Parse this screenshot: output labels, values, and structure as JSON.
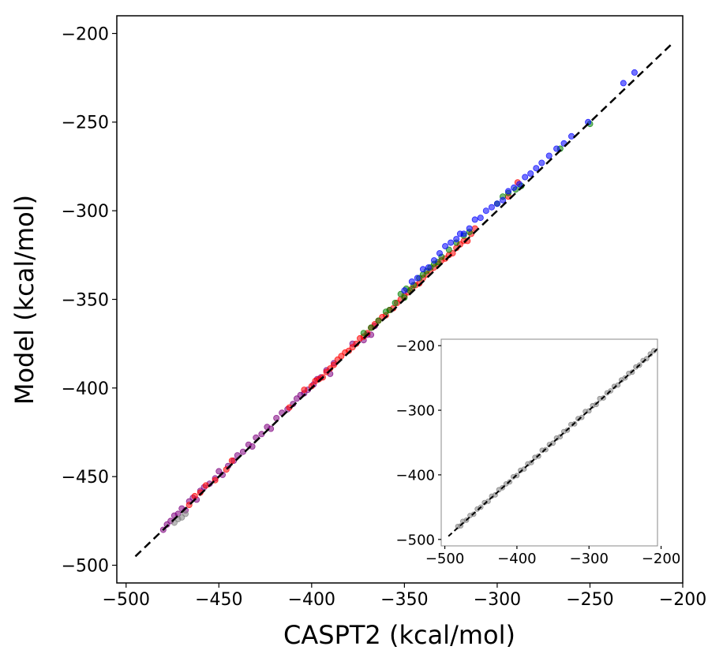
{
  "chart_data": [
    {
      "type": "scatter",
      "title": "",
      "xlabel": "CASPT2 (kcal/mol)",
      "ylabel": "Model (kcal/mol)",
      "xlim": [
        -505,
        -200
      ],
      "ylim": [
        -510,
        -190
      ],
      "xticks": [
        -500,
        -450,
        -400,
        -350,
        -300,
        -250,
        -200
      ],
      "yticks": [
        -500,
        -450,
        -400,
        -350,
        -300,
        -250,
        -200
      ],
      "xtick_labels": [
        "−500",
        "−450",
        "−400",
        "−350",
        "−300",
        "−250",
        "−200"
      ],
      "ytick_labels": [
        "−500",
        "−450",
        "−400",
        "−350",
        "−300",
        "−250",
        "−200"
      ],
      "grid": false,
      "reference_line": {
        "x": [
          -495,
          -205
        ],
        "y": [
          -495,
          -205
        ],
        "style": "dashed",
        "color": "#000000"
      },
      "series": [
        {
          "color": "#800080",
          "points": [
            [
              -480,
              -480
            ],
            [
              -478,
              -477
            ],
            [
              -476,
              -475
            ],
            [
              -474,
              -472
            ],
            [
              -472,
              -471
            ],
            [
              -470,
              -468
            ],
            [
              -468,
              -469
            ],
            [
              -466,
              -464
            ],
            [
              -464,
              -462
            ],
            [
              -462,
              -463
            ],
            [
              -460,
              -458
            ],
            [
              -458,
              -456
            ],
            [
              -455,
              -454
            ],
            [
              -452,
              -451
            ],
            [
              -450,
              -447
            ],
            [
              -448,
              -449
            ],
            [
              -445,
              -444
            ],
            [
              -442,
              -441
            ],
            [
              -440,
              -438
            ],
            [
              -437,
              -436
            ],
            [
              -434,
              -432
            ],
            [
              -432,
              -433
            ],
            [
              -430,
              -428
            ],
            [
              -427,
              -426
            ],
            [
              -424,
              -422
            ],
            [
              -422,
              -423
            ],
            [
              -419,
              -417
            ],
            [
              -416,
              -414
            ],
            [
              -413,
              -412
            ],
            [
              -410,
              -409
            ],
            [
              -408,
              -406
            ],
            [
              -406,
              -404
            ],
            [
              -404,
              -403
            ],
            [
              -402,
              -401
            ],
            [
              -399,
              -398
            ],
            [
              -397,
              -395
            ],
            [
              -395,
              -394
            ],
            [
              -392,
              -390
            ],
            [
              -390,
              -392
            ],
            [
              -388,
              -386
            ],
            [
              -378,
              -375
            ],
            [
              -372,
              -373
            ],
            [
              -370,
              -370
            ],
            [
              -368,
              -370
            ],
            [
              -366,
              -365
            ]
          ]
        },
        {
          "color": "#ff0000",
          "points": [
            [
              -466,
              -466
            ],
            [
              -463,
              -461
            ],
            [
              -460,
              -459
            ],
            [
              -457,
              -455
            ],
            [
              -452,
              -452
            ],
            [
              -446,
              -446
            ],
            [
              -443,
              -441
            ],
            [
              -412,
              -411
            ],
            [
              -404,
              -401
            ],
            [
              -400,
              -399
            ],
            [
              -398,
              -396
            ],
            [
              -396,
              -395
            ],
            [
              -394,
              -394
            ],
            [
              -392,
              -391
            ],
            [
              -390,
              -389
            ],
            [
              -388,
              -387
            ],
            [
              -386,
              -384
            ],
            [
              -384,
              -382
            ],
            [
              -382,
              -380
            ],
            [
              -380,
              -379
            ],
            [
              -378,
              -377
            ],
            [
              -376,
              -375
            ],
            [
              -374,
              -372
            ],
            [
              -372,
              -371
            ],
            [
              -370,
              -369
            ],
            [
              -368,
              -366
            ],
            [
              -366,
              -364
            ],
            [
              -364,
              -362
            ],
            [
              -362,
              -360
            ],
            [
              -360,
              -359
            ],
            [
              -358,
              -356
            ],
            [
              -356,
              -355
            ],
            [
              -354,
              -352
            ],
            [
              -352,
              -350
            ],
            [
              -350,
              -348
            ],
            [
              -348,
              -346
            ],
            [
              -346,
              -344
            ],
            [
              -344,
              -342
            ],
            [
              -342,
              -341
            ],
            [
              -340,
              -338
            ],
            [
              -338,
              -336
            ],
            [
              -336,
              -334
            ],
            [
              -334,
              -332
            ],
            [
              -332,
              -330
            ],
            [
              -330,
              -328
            ],
            [
              -328,
              -327
            ],
            [
              -326,
              -325
            ],
            [
              -324,
              -324
            ],
            [
              -322,
              -321
            ],
            [
              -320,
              -319
            ],
            [
              -318,
              -317
            ],
            [
              -316,
              -317
            ],
            [
              -314,
              -313
            ],
            [
              -312,
              -310
            ],
            [
              -294,
              -292
            ],
            [
              -289,
              -284
            ]
          ]
        },
        {
          "color": "#008000",
          "points": [
            [
              -372,
              -369
            ],
            [
              -368,
              -366
            ],
            [
              -364,
              -362
            ],
            [
              -360,
              -357
            ],
            [
              -358,
              -356
            ],
            [
              -355,
              -352
            ],
            [
              -352,
              -347
            ],
            [
              -350,
              -349
            ],
            [
              -349,
              -344
            ],
            [
              -347,
              -345
            ],
            [
              -345,
              -342
            ],
            [
              -342,
              -338
            ],
            [
              -340,
              -336
            ],
            [
              -338,
              -334
            ],
            [
              -336,
              -332
            ],
            [
              -334,
              -330
            ],
            [
              -332,
              -329
            ],
            [
              -330,
              -326
            ],
            [
              -326,
              -322
            ],
            [
              -322,
              -318
            ],
            [
              -318,
              -314
            ],
            [
              -315,
              -312
            ],
            [
              -300,
              -296
            ],
            [
              -297,
              -292
            ],
            [
              -294,
              -290
            ],
            [
              -290,
              -288
            ],
            [
              -287,
              -286
            ],
            [
              -266,
              -265
            ],
            [
              -250,
              -251
            ]
          ]
        },
        {
          "color": "#0000ff",
          "points": [
            [
              -350,
              -345
            ],
            [
              -346,
              -340
            ],
            [
              -343,
              -338
            ],
            [
              -340,
              -333
            ],
            [
              -337,
              -332
            ],
            [
              -334,
              -328
            ],
            [
              -331,
              -324
            ],
            [
              -328,
              -320
            ],
            [
              -325,
              -318
            ],
            [
              -322,
              -316
            ],
            [
              -320,
              -313
            ],
            [
              -318,
              -313
            ],
            [
              -315,
              -310
            ],
            [
              -312,
              -305
            ],
            [
              -309,
              -304
            ],
            [
              -306,
              -300
            ],
            [
              -303,
              -298
            ],
            [
              -300,
              -296
            ],
            [
              -297,
              -294
            ],
            [
              -294,
              -289
            ],
            [
              -291,
              -287
            ],
            [
              -288,
              -285
            ],
            [
              -285,
              -281
            ],
            [
              -282,
              -279
            ],
            [
              -279,
              -276
            ],
            [
              -276,
              -273
            ],
            [
              -272,
              -269
            ],
            [
              -268,
              -265
            ],
            [
              -264,
              -262
            ],
            [
              -260,
              -258
            ],
            [
              -251,
              -250
            ],
            [
              -232,
              -228
            ],
            [
              -226,
              -222
            ]
          ]
        },
        {
          "color": "#808080",
          "points": [
            [
              -474,
              -476
            ],
            [
              -472,
              -474
            ],
            [
              -470,
              -473
            ],
            [
              -468,
              -471
            ]
          ]
        }
      ]
    },
    {
      "type": "scatter",
      "title": "",
      "xlabel": "",
      "ylabel": "",
      "xlim": [
        -505,
        -205
      ],
      "ylim": [
        -510,
        -190
      ],
      "xticks": [
        -500,
        -400,
        -300,
        -200
      ],
      "yticks": [
        -500,
        -400,
        -300,
        -200
      ],
      "xtick_labels": [
        "−500",
        "−400",
        "−300",
        "−200"
      ],
      "ytick_labels": [
        "−500",
        "−400",
        "−300",
        "−200"
      ],
      "grid": false,
      "reference_line": {
        "x": [
          -495,
          -205
        ],
        "y": [
          -495,
          -205
        ],
        "style": "dashed",
        "color": "#000000"
      },
      "series": [
        {
          "color": "#808080",
          "points": [
            [
              -482,
              -480
            ],
            [
              -478,
              -479
            ],
            [
              -475,
              -472
            ],
            [
              -470,
              -470
            ],
            [
              -465,
              -463
            ],
            [
              -460,
              -461
            ],
            [
              -455,
              -453
            ],
            [
              -450,
              -450
            ],
            [
              -445,
              -443
            ],
            [
              -440,
              -441
            ],
            [
              -435,
              -433
            ],
            [
              -430,
              -431
            ],
            [
              -425,
              -423
            ],
            [
              -420,
              -420
            ],
            [
              -415,
              -414
            ],
            [
              -410,
              -411
            ],
            [
              -405,
              -403
            ],
            [
              -400,
              -401
            ],
            [
              -395,
              -393
            ],
            [
              -390,
              -391
            ],
            [
              -385,
              -383
            ],
            [
              -380,
              -381
            ],
            [
              -375,
              -373
            ],
            [
              -370,
              -371
            ],
            [
              -365,
              -362
            ],
            [
              -360,
              -361
            ],
            [
              -355,
              -353
            ],
            [
              -350,
              -351
            ],
            [
              -345,
              -343
            ],
            [
              -340,
              -341
            ],
            [
              -335,
              -333
            ],
            [
              -330,
              -331
            ],
            [
              -325,
              -322
            ],
            [
              -320,
              -321
            ],
            [
              -315,
              -313
            ],
            [
              -310,
              -311
            ],
            [
              -305,
              -302
            ],
            [
              -300,
              -301
            ],
            [
              -295,
              -293
            ],
            [
              -290,
              -291
            ],
            [
              -285,
              -282
            ],
            [
              -280,
              -281
            ],
            [
              -275,
              -273
            ],
            [
              -270,
              -270
            ],
            [
              -265,
              -263
            ],
            [
              -260,
              -261
            ],
            [
              -255,
              -253
            ],
            [
              -250,
              -250
            ],
            [
              -245,
              -243
            ],
            [
              -240,
              -241
            ],
            [
              -235,
              -233
            ],
            [
              -230,
              -230
            ],
            [
              -225,
              -223
            ],
            [
              -220,
              -220
            ],
            [
              -215,
              -213
            ],
            [
              -210,
              -208
            ]
          ]
        }
      ]
    }
  ]
}
